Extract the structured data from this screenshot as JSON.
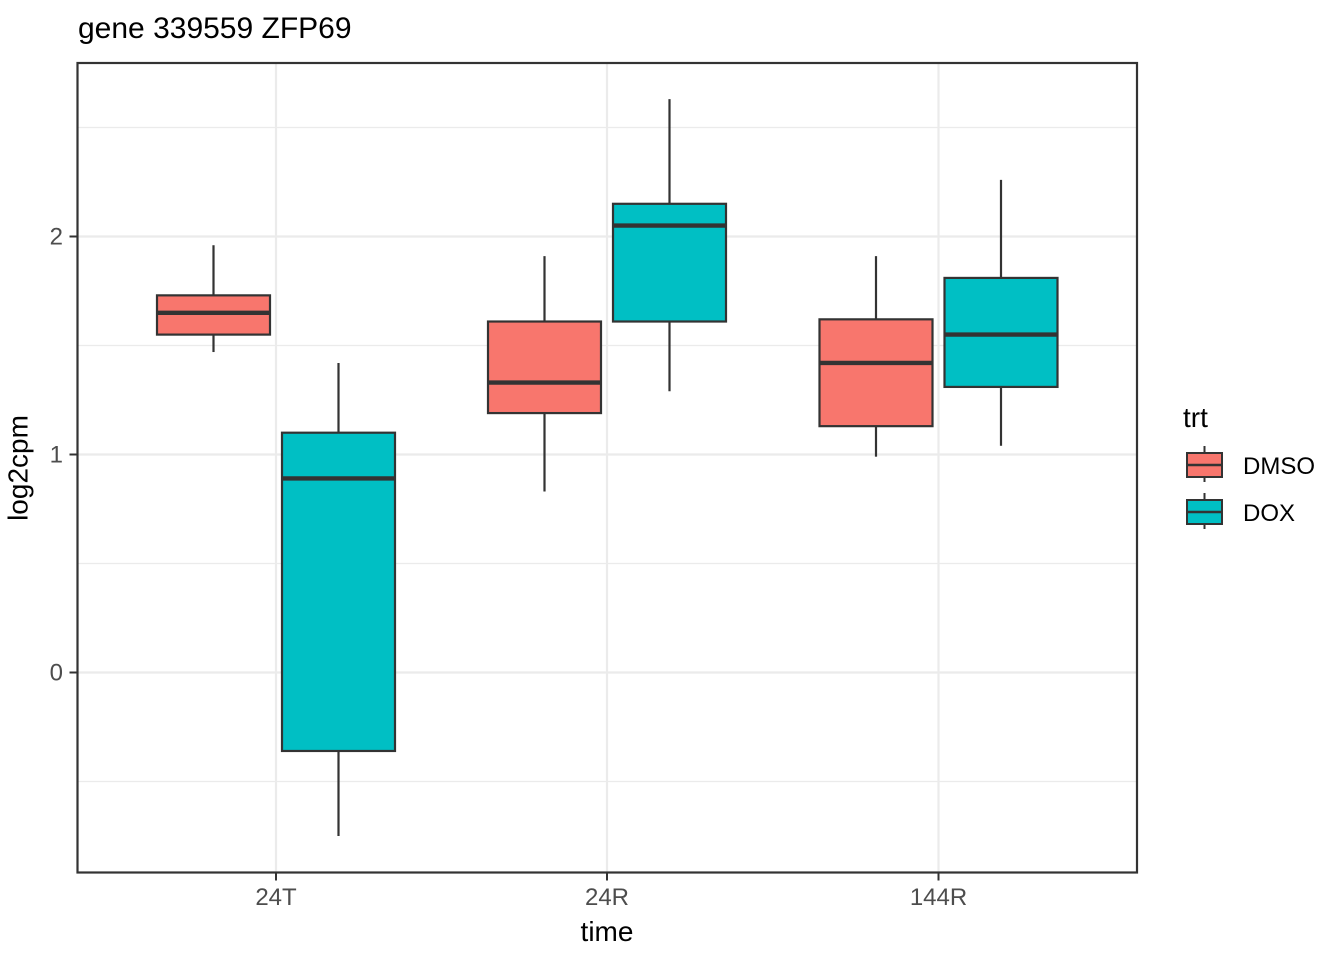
{
  "chart_data": {
    "type": "boxplot",
    "title": "gene 339559 ZFP69",
    "xlabel": "time",
    "ylabel": "log2cpm",
    "categories": [
      "24T",
      "24R",
      "144R"
    ],
    "y_ticks": [
      "0",
      "1",
      "2"
    ],
    "y_tick_values": [
      0,
      1,
      2
    ],
    "y_minor_values": [
      -0.5,
      0.5,
      1.5,
      2.5
    ],
    "ylim": [
      -0.92,
      2.8
    ],
    "grid": "major and minor horizontal, major vertical at categories",
    "legend": {
      "title": "trt",
      "position": "right",
      "entries": [
        {
          "label": "DMSO",
          "color": "#F8766D"
        },
        {
          "label": "DOX",
          "color": "#00BFC4"
        }
      ]
    },
    "series": [
      {
        "name": "DMSO",
        "color": "#F8766D",
        "boxes": [
          {
            "category": "24T",
            "whisker_low": 1.47,
            "q1": 1.55,
            "median": 1.65,
            "q3": 1.73,
            "whisker_high": 1.96
          },
          {
            "category": "24R",
            "whisker_low": 0.83,
            "q1": 1.19,
            "median": 1.33,
            "q3": 1.61,
            "whisker_high": 1.91
          },
          {
            "category": "144R",
            "whisker_low": 0.99,
            "q1": 1.13,
            "median": 1.42,
            "q3": 1.62,
            "whisker_high": 1.91
          }
        ]
      },
      {
        "name": "DOX",
        "color": "#00BFC4",
        "boxes": [
          {
            "category": "24T",
            "whisker_low": -0.75,
            "q1": -0.36,
            "median": 0.89,
            "q3": 1.1,
            "whisker_high": 1.42
          },
          {
            "category": "24R",
            "whisker_low": 1.29,
            "q1": 1.61,
            "median": 2.05,
            "q3": 2.15,
            "whisker_high": 2.63
          },
          {
            "category": "144R",
            "whisker_low": 1.04,
            "q1": 1.31,
            "median": 1.55,
            "q3": 1.81,
            "whisker_high": 2.26
          }
        ]
      }
    ],
    "colors": {
      "outline": "#333333",
      "gridline": "#EBEBEB",
      "tick_text": "#4D4D4D",
      "panel_background": "#FFFFFF",
      "dmso_fill": "#F8766D",
      "dox_fill": "#00BFC4"
    }
  }
}
